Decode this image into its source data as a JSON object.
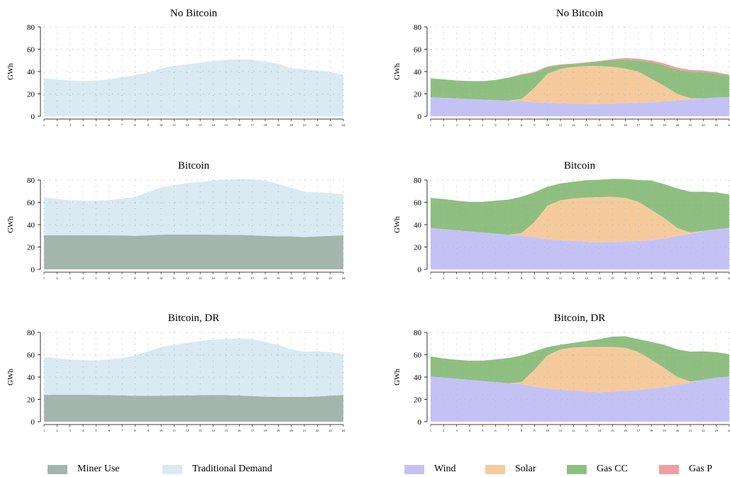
{
  "chart_data": [
    {
      "type": "area",
      "stacked": true,
      "title": "No Bitcoin",
      "ylabel": "GWh",
      "xlabel": "",
      "ylim": [
        0,
        80
      ],
      "yticks": [
        0,
        20,
        40,
        60,
        80
      ],
      "x": [
        1,
        2,
        3,
        4,
        5,
        6,
        7,
        8,
        9,
        10,
        11,
        12,
        13,
        14,
        15,
        16,
        17,
        18,
        19,
        20,
        21,
        22,
        23,
        24
      ],
      "grid": true,
      "series": [
        {
          "name": "Traditional Demand",
          "color": "#d9eaf2",
          "values": [
            34,
            33,
            32,
            31.5,
            32,
            33,
            35,
            37,
            39,
            43,
            45,
            46.5,
            48,
            49.5,
            50.5,
            51,
            50.5,
            49,
            47,
            43,
            42,
            41,
            39.5,
            37
          ]
        }
      ]
    },
    {
      "type": "area",
      "stacked": true,
      "title": "No Bitcoin",
      "ylabel": "GWh",
      "xlabel": "",
      "ylim": [
        0,
        80
      ],
      "yticks": [
        0,
        20,
        40,
        60,
        80
      ],
      "x": [
        1,
        2,
        3,
        4,
        5,
        6,
        7,
        8,
        9,
        10,
        11,
        12,
        13,
        14,
        15,
        16,
        17,
        18,
        19,
        20,
        21,
        22,
        23,
        24
      ],
      "grid": true,
      "series": [
        {
          "name": "Wind",
          "color": "#c4c2f5",
          "values": [
            17,
            16.5,
            16,
            15.5,
            15,
            14.5,
            14,
            13.5,
            12.5,
            12,
            11.5,
            11.2,
            11,
            11,
            11.3,
            11.6,
            12,
            12.5,
            13.2,
            14,
            15,
            16,
            16.8,
            17
          ]
        },
        {
          "name": "Solar",
          "color": "#f5cb9e",
          "values": [
            0,
            0,
            0,
            0,
            0,
            0,
            0,
            2,
            13,
            26,
            31,
            33,
            34,
            34,
            33,
            31,
            28,
            21,
            14,
            6,
            1,
            0,
            0,
            0
          ]
        },
        {
          "name": "Gas CC",
          "color": "#8fbf80",
          "values": [
            17,
            16.5,
            16,
            16,
            16.5,
            18,
            20.5,
            21.5,
            13.5,
            6,
            3.5,
            2.5,
            2.8,
            4,
            6,
            8,
            10,
            15,
            18.3,
            21.5,
            24,
            23.5,
            21.5,
            19.5
          ]
        },
        {
          "name": "Gas P",
          "color": "#f29e9e",
          "values": [
            0,
            0,
            0,
            0,
            0,
            0,
            0.2,
            0.8,
            0.8,
            0.6,
            0.5,
            0.5,
            0.5,
            0.5,
            0.8,
            1.5,
            1.5,
            1.5,
            1.8,
            2,
            1.5,
            1.5,
            1.2,
            0.7
          ]
        }
      ]
    },
    {
      "type": "area",
      "stacked": true,
      "title": "Bitcoin",
      "ylabel": "GWh",
      "xlabel": "",
      "ylim": [
        0,
        80
      ],
      "yticks": [
        0,
        20,
        40,
        60,
        80
      ],
      "x": [
        1,
        2,
        3,
        4,
        5,
        6,
        7,
        8,
        9,
        10,
        11,
        12,
        13,
        14,
        15,
        16,
        17,
        18,
        19,
        20,
        21,
        22,
        23,
        24
      ],
      "grid": true,
      "series": [
        {
          "name": "Miner Use",
          "color": "#a3b5ad",
          "values": [
            30.5,
            30.5,
            30.5,
            30.5,
            30.5,
            30.5,
            30.3,
            30,
            30.5,
            31,
            31.2,
            31.2,
            31.2,
            31,
            31,
            30.8,
            30.5,
            30,
            29.5,
            29.5,
            29,
            29.5,
            30,
            30.5
          ]
        },
        {
          "name": "Traditional Demand",
          "color": "#d9eaf2",
          "values": [
            34,
            32.5,
            31.5,
            31,
            31,
            31.5,
            33,
            35,
            38.5,
            42.5,
            44.5,
            46,
            47,
            48.5,
            49.5,
            50,
            50,
            49.5,
            47,
            43.5,
            40.5,
            39.5,
            38.5,
            36.5
          ]
        }
      ]
    },
    {
      "type": "area",
      "stacked": true,
      "title": "Bitcoin",
      "ylabel": "GWh",
      "xlabel": "",
      "ylim": [
        0,
        80
      ],
      "yticks": [
        0,
        20,
        40,
        60,
        80
      ],
      "x": [
        1,
        2,
        3,
        4,
        5,
        6,
        7,
        8,
        9,
        10,
        11,
        12,
        13,
        14,
        15,
        16,
        17,
        18,
        19,
        20,
        21,
        22,
        23,
        24
      ],
      "grid": true,
      "series": [
        {
          "name": "Wind",
          "color": "#c4c2f5",
          "values": [
            37,
            36,
            35,
            34,
            33,
            32,
            31,
            30,
            28.5,
            27,
            26,
            25.5,
            24.8,
            24.2,
            24.5,
            25,
            25.5,
            26.2,
            27.8,
            30,
            32,
            34.5,
            36,
            37
          ]
        },
        {
          "name": "Solar",
          "color": "#f5cb9e",
          "values": [
            0,
            0,
            0,
            0,
            0,
            0,
            0,
            2.5,
            14,
            30,
            36,
            38,
            39.5,
            40.5,
            40.5,
            39,
            35,
            27,
            18,
            7,
            1,
            0,
            0,
            0
          ]
        },
        {
          "name": "Gas CC",
          "color": "#8fbf80",
          "values": [
            27,
            27,
            26.5,
            26.5,
            27.5,
            29.5,
            31.5,
            32.5,
            26.5,
            17,
            15,
            15,
            15.5,
            15.5,
            16,
            17,
            19.5,
            26.3,
            30.5,
            35.5,
            36.5,
            35,
            33,
            30
          ]
        },
        {
          "name": "Gas P",
          "color": "#f29e9e",
          "values": [
            0,
            0,
            0,
            0,
            0,
            0,
            0,
            0,
            0,
            0,
            0,
            0,
            0,
            0,
            0,
            0,
            0,
            0,
            0,
            0,
            0,
            0,
            0,
            0
          ]
        }
      ]
    },
    {
      "type": "area",
      "stacked": true,
      "title": "Bitcoin, DR",
      "ylabel": "GWh",
      "xlabel": "",
      "ylim": [
        0,
        80
      ],
      "yticks": [
        0,
        20,
        40,
        60,
        80
      ],
      "x": [
        1,
        2,
        3,
        4,
        5,
        6,
        7,
        8,
        9,
        10,
        11,
        12,
        13,
        14,
        15,
        16,
        17,
        18,
        19,
        20,
        21,
        22,
        23,
        24
      ],
      "grid": true,
      "series": [
        {
          "name": "Miner Use",
          "color": "#a3b5ad",
          "values": [
            24,
            24.2,
            24.2,
            24.2,
            24,
            23.8,
            23.6,
            23.2,
            23.2,
            23.3,
            23.4,
            23.6,
            23.8,
            24,
            23.8,
            23.5,
            23,
            22.5,
            22.3,
            22.3,
            22.2,
            22.6,
            23.3,
            24
          ]
        },
        {
          "name": "Traditional Demand",
          "color": "#d9eaf2",
          "values": [
            34,
            32.5,
            31.5,
            31,
            31,
            32,
            33.5,
            36,
            40,
            43.5,
            45.6,
            47,
            48.5,
            49.5,
            50.5,
            51,
            51,
            49,
            46.5,
            42.5,
            40.6,
            40.5,
            39,
            36.5
          ]
        }
      ]
    },
    {
      "type": "area",
      "stacked": true,
      "title": "Bitcoin, DR",
      "ylabel": "GWh",
      "xlabel": "",
      "ylim": [
        0,
        80
      ],
      "yticks": [
        0,
        20,
        40,
        60,
        80
      ],
      "x": [
        1,
        2,
        3,
        4,
        5,
        6,
        7,
        8,
        9,
        10,
        11,
        12,
        13,
        14,
        15,
        16,
        17,
        18,
        19,
        20,
        21,
        22,
        23,
        24
      ],
      "grid": true,
      "series": [
        {
          "name": "Wind",
          "color": "#c4c2f5",
          "values": [
            40.5,
            39.5,
            38.5,
            37.5,
            36.5,
            35.5,
            34.5,
            33.5,
            31.5,
            29.5,
            28.8,
            28,
            27,
            26.5,
            27,
            27.8,
            28.5,
            29.5,
            31,
            33,
            35,
            37.5,
            39.5,
            40.5
          ]
        },
        {
          "name": "Solar",
          "color": "#f5cb9e",
          "values": [
            0,
            0,
            0,
            0,
            0,
            0,
            0,
            2,
            15,
            30,
            36,
            38.5,
            40,
            40.5,
            40,
            38.5,
            34,
            26,
            17,
            7,
            1,
            0,
            0,
            0
          ]
        },
        {
          "name": "Gas CC",
          "color": "#8fbf80",
          "values": [
            18,
            17.2,
            17,
            17.2,
            18.2,
            20.3,
            22.6,
            23.7,
            16.7,
            7.3,
            4.2,
            4.1,
            5.3,
            7,
            9.3,
            10.2,
            11.5,
            16,
            20.8,
            24.8,
            26.8,
            25.6,
            22.8,
            20
          ]
        },
        {
          "name": "Gas P",
          "color": "#f29e9e",
          "values": [
            0,
            0,
            0,
            0,
            0,
            0,
            0,
            0,
            0,
            0,
            0,
            0,
            0,
            0,
            0,
            0,
            0,
            0,
            0,
            0,
            0,
            0,
            0,
            0
          ]
        }
      ]
    }
  ],
  "legends": {
    "left": [
      {
        "label": "Miner Use",
        "color": "#a3b5ad"
      },
      {
        "label": "Traditional Demand",
        "color": "#d9eaf2"
      }
    ],
    "right": [
      {
        "label": "Wind",
        "color": "#c4c2f5"
      },
      {
        "label": "Solar",
        "color": "#f5cb9e"
      },
      {
        "label": "Gas CC",
        "color": "#8fbf80"
      },
      {
        "label": "Gas P",
        "color": "#f29e9e"
      }
    ]
  }
}
